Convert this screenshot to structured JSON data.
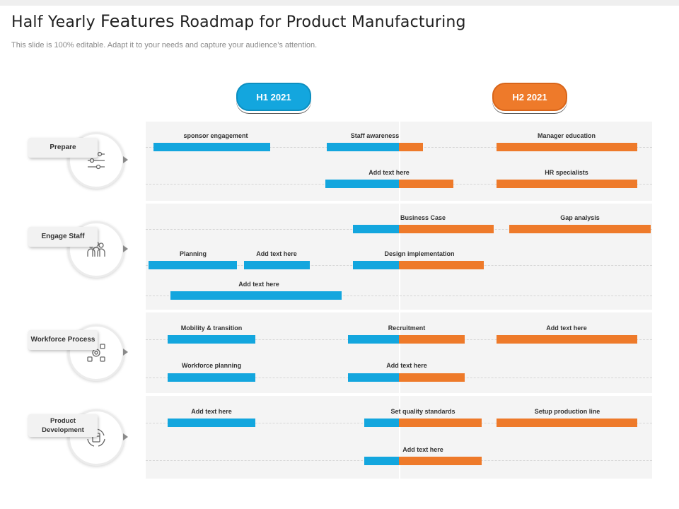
{
  "title": {
    "pre": "Half Yearly ",
    "big": "Features",
    "post": " Roadmap for Product Manufacturing"
  },
  "subtitle": "This slide is 100% editable. Adapt it to your needs and capture your audience’s attention.",
  "periods": {
    "h1": "H1 2021",
    "h2": "H2 2021"
  },
  "colors": {
    "h1": "#13a6de",
    "h2": "#ee7a2a",
    "panel": "#f4f4f4"
  },
  "categories": [
    {
      "name": "Prepare",
      "icon": "sliders-icon"
    },
    {
      "name": "Engage Staff",
      "icon": "people-icon"
    },
    {
      "name": "Workforce Process",
      "icon": "process-icon"
    },
    {
      "name": "Product Development",
      "icon": "product-development-icon"
    }
  ],
  "tasks": {
    "sponsor_engagement": "sponsor engagement",
    "staff_awareness": "Staff awareness",
    "manager_education": "Manager education",
    "prepare_add_text": "Add text here",
    "hr_specialists": "HR specialists",
    "business_case": "Business Case",
    "gap_analysis": "Gap analysis",
    "planning": "Planning",
    "engage_add_text_1": "Add text here",
    "design_implementation": "Design implementation",
    "engage_add_text_2": "Add text here",
    "mobility_transition": "Mobility & transition",
    "recruitment": "Recruitment",
    "workforce_add_text_1": "Add text here",
    "workforce_planning": "Workforce planning",
    "workforce_add_text_2": "Add text here",
    "product_add_text_1": "Add text here",
    "set_quality_standards": "Set quality standards",
    "setup_production_line": "Setup production line",
    "product_add_text_2": "Add text here"
  }
}
